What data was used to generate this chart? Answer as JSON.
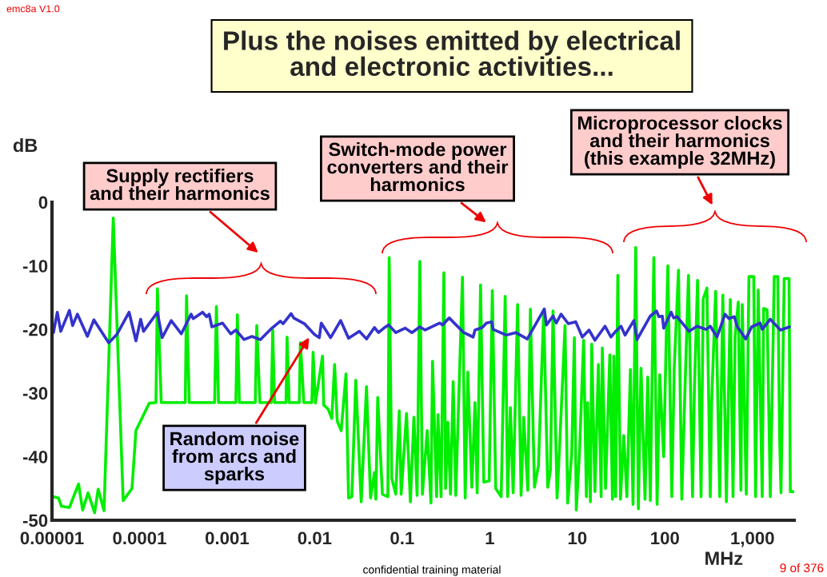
{
  "chart_data": {
    "type": "line",
    "title": "Plus the noises emitted by electrical\nand electronic activities...",
    "xlabel": "MHz",
    "ylabel": "dB",
    "log": "x",
    "xlim": [
      1e-05,
      3000
    ],
    "ylim": [
      -50,
      0
    ],
    "xticks": [
      {
        "value": 1e-05,
        "label": "0.00001"
      },
      {
        "value": 0.0001,
        "label": "0.0001"
      },
      {
        "value": 0.001,
        "label": "0.001"
      },
      {
        "value": 0.01,
        "label": "0.01"
      },
      {
        "value": 0.1,
        "label": "0.1"
      },
      1,
      10,
      100,
      {
        "value": 1000,
        "label": "1,000"
      }
    ],
    "yticks": [
      0,
      -10,
      -20,
      -30,
      -40,
      -50
    ],
    "annotations": [
      "emc8a V1.0",
      "Supply rectifiers\nand their harmonics",
      "Switch-mode power\nconverters and their\nharmonics",
      "Microprocessor clocks\nand their harmonics\n(this example 32MHz)",
      "Random noise\nfrom arcs and\nsparks",
      "confidential training material",
      "9 of 376"
    ],
    "series": [
      {
        "color": "#00ee00",
        "x": [
          1.04e-05,
          1.19e-05,
          1.28e-05,
          1.58e-05,
          2.01e-05,
          2.24e-05,
          2.58e-05,
          3.07e-05,
          3.37e-05,
          3.93e-05,
          5.01e-05,
          6.5e-05,
          8.2e-05,
          9.1e-05,
          0.000129,
          0.000154,
          0.00016,
          0.000177,
          0.000333,
          0.000344,
          0.00037,
          0.00072,
          0.000755,
          0.000798,
          0.00126,
          0.00131,
          0.00138,
          0.0021,
          0.00218,
          0.00237,
          0.0032,
          0.00332,
          0.00348,
          0.00471,
          0.00484,
          0.00512,
          0.00668,
          0.00687,
          0.00753,
          0.0093,
          0.0096,
          0.0102,
          0.0123,
          0.0127,
          0.0142,
          0.0157,
          0.0169,
          0.0181,
          0.0201,
          0.0228,
          0.0244,
          0.0266,
          0.0295,
          0.034,
          0.0391,
          0.0435,
          0.0482,
          0.05,
          0.0525,
          0.0594,
          0.0686,
          0.071,
          0.076,
          0.0845,
          0.0925,
          0.0973,
          0.112,
          0.124,
          0.136,
          0.148,
          0.159,
          0.17,
          0.193,
          0.213,
          0.222,
          0.247,
          0.256,
          0.278,
          0.299,
          0.313,
          0.332,
          0.356,
          0.382,
          0.409,
          0.488,
          0.524,
          0.561,
          0.624,
          0.678,
          0.718,
          0.785,
          0.855,
          0.984,
          1.07,
          1.17,
          1.35,
          1.5,
          1.6,
          1.72,
          1.85,
          2.08,
          2.28,
          2.44,
          2.72,
          2.91,
          3.24,
          3.6,
          4.13,
          4.59,
          4.93,
          5.28,
          5.87,
          6.3,
          7.24,
          7.76,
          8.63,
          9.25,
          9.73,
          10.6,
          11.8,
          12.7,
          13.1,
          14.1,
          14.6,
          15.9,
          17.4,
          18.7,
          19.3,
          21.0,
          23.5,
          25.2,
          26.1,
          27.4,
          29.0,
          31.1,
          33.9,
          36.8,
          40.4,
          43.3,
          46.4,
          49.8,
          53.4,
          59.3,
          63.7,
          68.2,
          74.8,
          81.5,
          87.3,
          96.9,
          108,
          120,
          128,
          143,
          156,
          170,
          186,
          207,
          217,
          236,
          259,
          274,
          302,
          330,
          342,
          380,
          423,
          459,
          504,
          559,
          600,
          634,
          689,
          739,
          765,
          851,
          912,
          1035,
          1086,
          1164,
          1294,
          1343,
          1469,
          1600,
          1775,
          1945,
          2046,
          2120,
          2306,
          2618,
          2711,
          2911
        ],
        "values": [
          -46.3,
          -46.5,
          -47.8,
          -48.0,
          -44.3,
          -48.4,
          -45.7,
          -48.8,
          -45.1,
          -48.5,
          -2.5,
          -46.9,
          -45.0,
          -35.9,
          -31.6,
          -31.5,
          -13.6,
          -31.5,
          -31.5,
          -14.7,
          -31.5,
          -31.5,
          -16.4,
          -31.5,
          -31.5,
          -17.7,
          -31.5,
          -31.5,
          -19.4,
          -31.5,
          -31.5,
          -20.1,
          -31.5,
          -31.5,
          -21.2,
          -31.5,
          -31.5,
          -22.1,
          -31.5,
          -31.5,
          -23.6,
          -31.6,
          -24.2,
          -31.9,
          -32.5,
          -34.0,
          -25.5,
          -34.4,
          -35.9,
          -27.0,
          -46.5,
          -46.3,
          -28.0,
          -47.1,
          -29.0,
          -46.5,
          -42.5,
          -46.7,
          -30.7,
          -45.9,
          -46.3,
          -8.7,
          -43.4,
          -45.9,
          -32.8,
          -45.9,
          -33.2,
          -47.1,
          -33.8,
          -46.1,
          -9.3,
          -45.9,
          -35.9,
          -47.3,
          -25.0,
          -46.3,
          -33.4,
          -46.3,
          -11.1,
          -45.0,
          -34.6,
          -45.9,
          -28.2,
          -46.1,
          -11.8,
          -46.5,
          -26.7,
          -44.8,
          -31.5,
          -45.7,
          -13.0,
          -44.0,
          -43.8,
          -13.9,
          -45.0,
          -46.3,
          -14.8,
          -46.3,
          -32.3,
          -45.7,
          -16.1,
          -46.1,
          -33.8,
          -45.3,
          -16.8,
          -44.8,
          -41.4,
          -16.9,
          -44.8,
          -42.1,
          -17.1,
          -46.5,
          -37.9,
          -19.4,
          -47.3,
          -39.6,
          -21.3,
          -48.4,
          -39.2,
          -21.7,
          -46.3,
          -31.5,
          -47.1,
          -22.3,
          -45.5,
          -25.5,
          -46.3,
          -22.9,
          -45.0,
          -24.0,
          -46.7,
          -24.2,
          -46.3,
          -11.5,
          -46.7,
          -36.7,
          -46.3,
          -26.3,
          -47.5,
          -7.1,
          -48.2,
          -26.1,
          -46.7,
          -27.5,
          -46.9,
          -8.7,
          -47.5,
          -27.1,
          -40.0,
          -10.0,
          -46.3,
          -25.9,
          -10.7,
          -46.7,
          -29.0,
          -11.5,
          -46.3,
          -30.0,
          -12.3,
          -46.3,
          -15.2,
          -13.5,
          -46.3,
          -31.5,
          -14.0,
          -46.3,
          -14.6,
          -47.1,
          -15.3,
          -46.3,
          -21.1,
          -15.7,
          -45.3,
          -16.1,
          -45.9,
          -11.7,
          -11.7,
          -46.3,
          -13.8,
          -46.3,
          -16.7,
          -16.9,
          -46.3,
          -11.7,
          -11.7,
          -37.1,
          -45.7,
          -12.0,
          -12.0,
          -45.5,
          -45.5
        ]
      },
      {
        "color": "#3333cc",
        "x": [
          1.04e-05,
          1.15e-05,
          1.26e-05,
          1.58e-05,
          1.72e-05,
          1.95e-05,
          2.54e-05,
          3.01e-05,
          4.45e-05,
          5.5e-05,
          7.6e-05,
          9.1e-05,
          0.000103,
          0.000111,
          0.00016,
          0.000181,
          0.00023,
          0.0003,
          0.000388,
          0.00041,
          0.000525,
          0.000583,
          0.000625,
          0.00067,
          0.000887,
          0.0011,
          0.00126,
          0.00156,
          0.00192,
          0.0024,
          0.00313,
          0.00406,
          0.00436,
          0.00538,
          0.00577,
          0.00764,
          0.00995,
          0.0113,
          0.0119,
          0.0152,
          0.0198,
          0.0244,
          0.0324,
          0.0391,
          0.0482,
          0.0536,
          0.0617,
          0.07,
          0.0845,
          0.108,
          0.129,
          0.159,
          0.183,
          0.269,
          0.288,
          0.344,
          0.505,
          0.646,
          0.678,
          0.824,
          0.916,
          1.05,
          1.09,
          1.55,
          1.98,
          2.68,
          4.2,
          4.44,
          5.28,
          5.75,
          6.52,
          7.88,
          9.59,
          11.4,
          13.6,
          15.9,
          20.7,
          24.2,
          27.4,
          31.6,
          35.1,
          44.2,
          48.1,
          68.2,
          80.2,
          85.5,
          93.5,
          96.9,
          118,
          126,
          138,
          189,
          233,
          297,
          330,
          394,
          486,
          540,
          621,
          667,
          839,
          979,
          1225,
          1294,
          1600,
          2090,
          2650
        ],
        "values": [
          -20.5,
          -17.3,
          -20.3,
          -17.0,
          -19.4,
          -17.6,
          -21.1,
          -18.5,
          -22.1,
          -20.8,
          -17.3,
          -21.8,
          -18.4,
          -20.3,
          -17.3,
          -21.3,
          -18.6,
          -20.7,
          -17.6,
          -18.3,
          -17.3,
          -18.0,
          -17.6,
          -19.6,
          -19.0,
          -20.7,
          -20.1,
          -21.6,
          -21.1,
          -21.6,
          -20.0,
          -18.7,
          -19.1,
          -17.5,
          -18.2,
          -19.1,
          -20.8,
          -21.3,
          -19.0,
          -21.3,
          -18.6,
          -21.4,
          -20.3,
          -21.5,
          -19.7,
          -20.5,
          -19.8,
          -19.3,
          -20.5,
          -19.8,
          -20.5,
          -19.6,
          -20.1,
          -19.0,
          -19.3,
          -18.2,
          -20.5,
          -21.2,
          -20.1,
          -19.7,
          -19.0,
          -18.8,
          -20.0,
          -20.9,
          -20.5,
          -21.5,
          -16.8,
          -19.3,
          -17.9,
          -19.0,
          -17.6,
          -19.1,
          -18.8,
          -21.2,
          -20.1,
          -21.7,
          -19.5,
          -21.2,
          -20.3,
          -19.5,
          -20.9,
          -18.6,
          -21.6,
          -17.9,
          -17.1,
          -18.0,
          -17.9,
          -19.8,
          -17.3,
          -18.2,
          -18.0,
          -20.3,
          -19.5,
          -20.0,
          -19.5,
          -21.2,
          -17.6,
          -18.3,
          -18.0,
          -19.5,
          -21.5,
          -19.6,
          -19.0,
          -20.0,
          -18.4,
          -20.1,
          -19.6
        ]
      }
    ]
  }
}
